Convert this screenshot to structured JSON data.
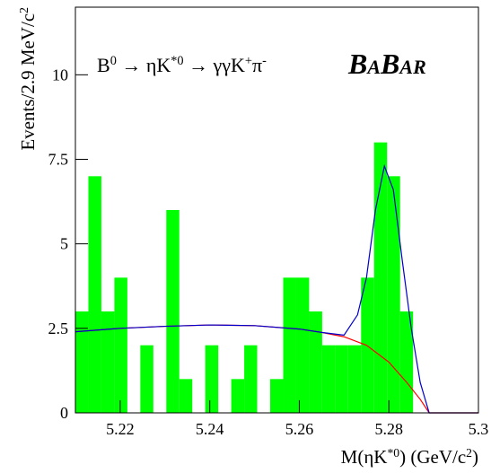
{
  "chart_data": {
    "type": "histogram",
    "annotation": [
      "B",
      "0",
      " → ηK",
      "*0",
      " → γγK",
      "+",
      "π",
      "-"
    ],
    "logo": [
      "B",
      "A",
      "B",
      "A",
      "R"
    ],
    "x_label": [
      "M(ηK",
      "*0",
      ") (GeV/c",
      "2",
      ")"
    ],
    "y_label": [
      "Events/2.9 MeV/c",
      "2"
    ],
    "bins": [
      5.21,
      5.2129,
      5.2158,
      5.2187,
      5.2216,
      5.2245,
      5.2274,
      5.2303,
      5.2332,
      5.2361,
      5.239,
      5.2419,
      5.2448,
      5.2477,
      5.2506,
      5.2535,
      5.2564,
      5.2593,
      5.2622,
      5.2651,
      5.268,
      5.2709,
      5.2738,
      5.2767,
      5.2796,
      5.2825,
      5.2854,
      5.2883,
      5.2912,
      5.2941,
      5.297,
      5.2999
    ],
    "counts": [
      3,
      7,
      3,
      4,
      0,
      2,
      0,
      6,
      1,
      0,
      2,
      0,
      1,
      2,
      0,
      1,
      4,
      4,
      3,
      2,
      2,
      2,
      4,
      8,
      7,
      3,
      0,
      0,
      0,
      0,
      0
    ],
    "color": "#00ff00",
    "series": [
      {
        "color": "#ff0000",
        "x": [
          5.21,
          5.22,
          5.23,
          5.24,
          5.25,
          5.26,
          5.265,
          5.27,
          5.275,
          5.28,
          5.284,
          5.287,
          5.289,
          5.3
        ],
        "values": [
          2.4,
          2.5,
          2.56,
          2.6,
          2.58,
          2.48,
          2.38,
          2.25,
          2.0,
          1.5,
          0.9,
          0.4,
          0,
          0
        ]
      },
      {
        "color": "#0000cc",
        "x": [
          5.21,
          5.22,
          5.23,
          5.24,
          5.25,
          5.26,
          5.265,
          5.27,
          5.273,
          5.275,
          5.277,
          5.279,
          5.281,
          5.283,
          5.285,
          5.287,
          5.289,
          5.3
        ],
        "values": [
          2.4,
          2.5,
          2.56,
          2.6,
          2.58,
          2.48,
          2.38,
          2.3,
          2.9,
          4.0,
          6.0,
          7.3,
          6.6,
          4.5,
          2.5,
          0.9,
          0,
          0
        ]
      }
    ],
    "xlim": [
      5.21,
      5.3
    ],
    "ylim": [
      0,
      12
    ],
    "xticks": [
      5.22,
      5.24,
      5.26,
      5.28,
      5.3
    ],
    "yticks": [
      0,
      2.5,
      5,
      7.5,
      10
    ]
  }
}
